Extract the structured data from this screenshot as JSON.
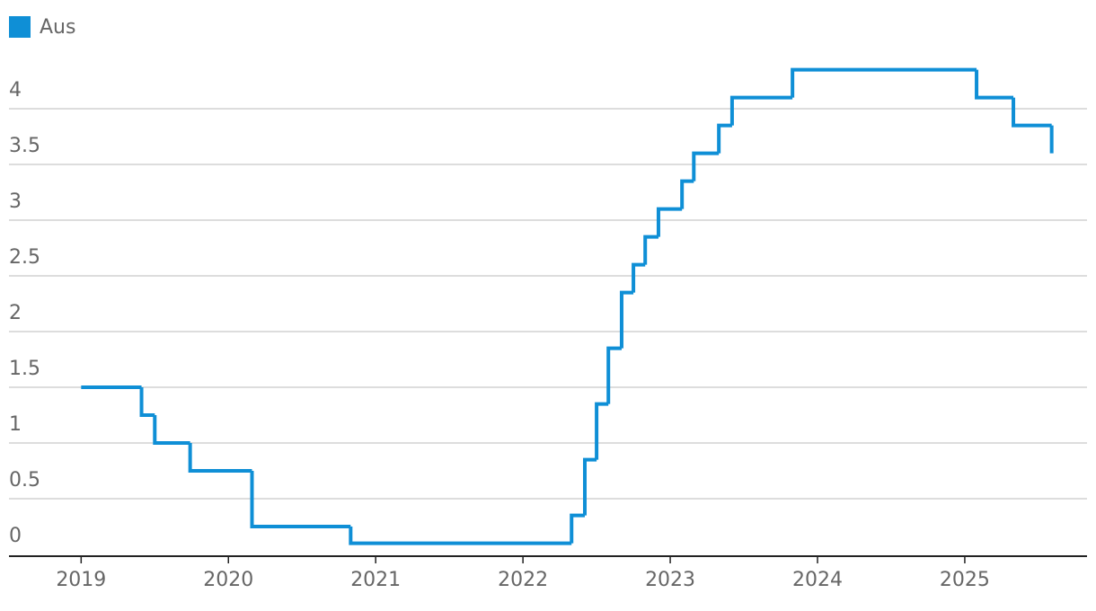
{
  "chart_data": {
    "type": "step",
    "x": [
      2019.0,
      2019.41,
      2019.5,
      2019.74,
      2020.16,
      2020.83,
      2022.33,
      2022.42,
      2022.5,
      2022.58,
      2022.67,
      2022.75,
      2022.83,
      2022.92,
      2023.08,
      2023.16,
      2023.33,
      2023.42,
      2023.83,
      2025.08,
      2025.33,
      2025.59
    ],
    "series": [
      {
        "name": "Aus",
        "color": "#0f8fd6",
        "values": [
          1.5,
          1.25,
          1.0,
          0.75,
          0.25,
          0.1,
          0.35,
          0.85,
          1.35,
          1.85,
          2.35,
          2.6,
          2.85,
          3.1,
          3.35,
          3.6,
          3.85,
          4.1,
          4.35,
          4.1,
          3.85,
          3.6
        ]
      }
    ],
    "xlim": [
      2018.51,
      2025.83
    ],
    "xticks": [
      2019,
      2020,
      2021,
      2022,
      2023,
      2024,
      2025
    ],
    "ylim": [
      0,
      4.45
    ],
    "yticks": [
      0,
      0.5,
      1,
      1.5,
      2,
      2.5,
      3,
      3.5,
      4
    ],
    "grid": true
  }
}
